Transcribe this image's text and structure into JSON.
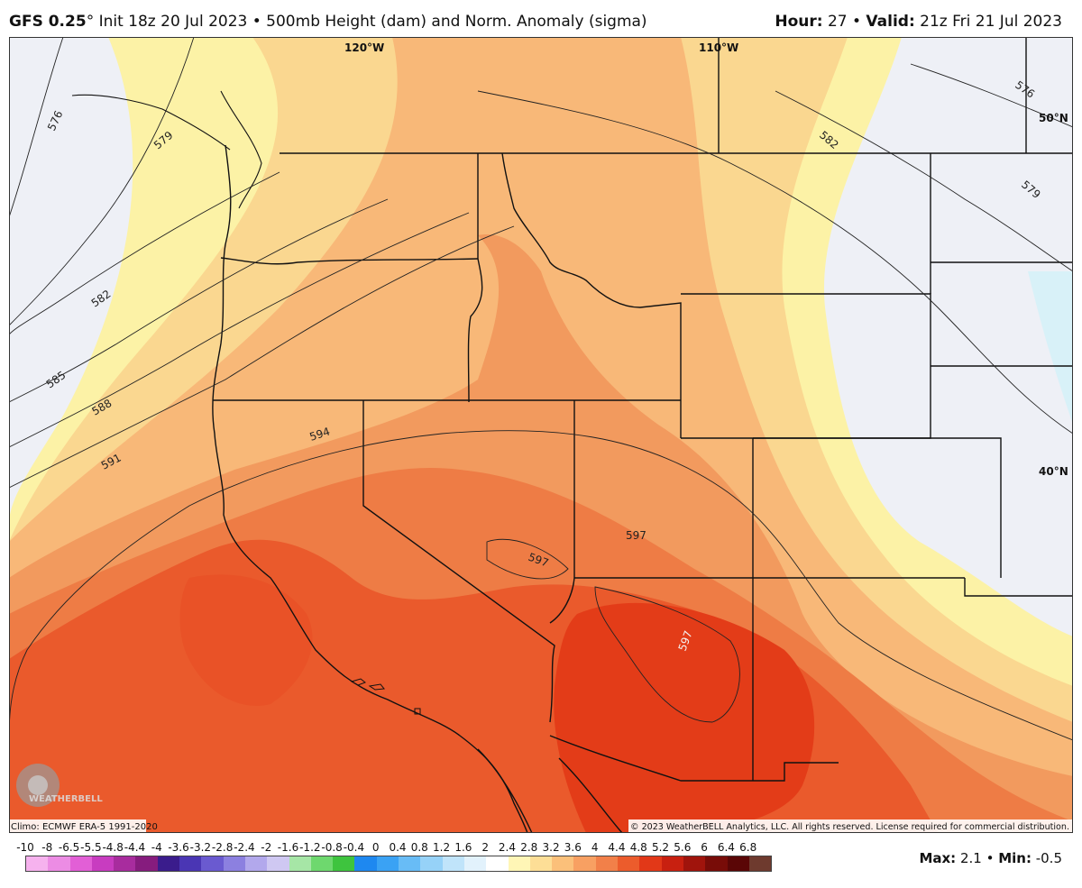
{
  "header": {
    "model": "GFS 0.25",
    "degree": "°",
    "init": " Init 18z 20 Jul 2023 • 500mb Height (dam) and Norm. Anomaly (sigma)",
    "hour_label": "Hour:",
    "hour_value": " 27 • ",
    "valid_label": "Valid:",
    "valid_value": " 21z Fri 21 Jul 2023"
  },
  "map": {
    "lon_labels": [
      "120°W",
      "110°W"
    ],
    "lat_labels": [
      "50°N",
      "40°N"
    ],
    "contour_labels": [
      "576",
      "579",
      "582",
      "585",
      "588",
      "591",
      "594",
      "597",
      "597",
      "597",
      "582",
      "579",
      "576"
    ],
    "climo_text": "Climo: ECMWF ERA-5 1991-2020",
    "copyright": "© 2023 WeatherBELL Analytics, LLC. All rights reserved. License required for commercial distribution.",
    "logo_text": "WEATHERBELL",
    "colors": {
      "cold_far": "#eef0f6",
      "pale_yellow": "#fcf2a6",
      "peach": "#fad790",
      "light_orange": "#f8b878",
      "orange": "#f29a5e",
      "deep_orange": "#ee7c45",
      "red_orange": "#ea5a2c",
      "red": "#e33c18",
      "ice": "#d8f1f8"
    }
  },
  "legend": {
    "labels": [
      "-10",
      "-8",
      "-6.5",
      "-5.5",
      "-4.8",
      "-4.4",
      "-4",
      "-3.6",
      "-3.2",
      "-2.8",
      "-2.4",
      "-2",
      "-1.6",
      "-1.2",
      "-0.8",
      "-0.4",
      "0",
      "0.4",
      "0.8",
      "1.2",
      "1.6",
      "2",
      "2.4",
      "2.8",
      "3.2",
      "3.6",
      "4",
      "4.4",
      "4.8",
      "5.2",
      "5.6",
      "6",
      "6.4",
      "6.8"
    ],
    "colors": [
      "#f6b2ee",
      "#ec8ce4",
      "#e25fd6",
      "#c83cc0",
      "#a82c9e",
      "#861c7e",
      "#3a1c8c",
      "#4a36b4",
      "#6a5ad0",
      "#8c80e0",
      "#b2a8ec",
      "#cfc8f2",
      "#a6e6a6",
      "#6ed86e",
      "#3ec43e",
      "#1e88f0",
      "#3aa2f4",
      "#68bcf6",
      "#96d2f8",
      "#c0e4fa",
      "#e2f2fc",
      "#ffffff",
      "#fff6b6",
      "#fdde96",
      "#fbc07a",
      "#f8a062",
      "#f28049",
      "#ec5c2c",
      "#e23818",
      "#c82010",
      "#a0140c",
      "#780c08",
      "#5a0606",
      "#6e3a2e"
    ],
    "max_label": "Max:",
    "max_value": " 2.1 • ",
    "min_label": "Min:",
    "min_value": " -0.5"
  }
}
